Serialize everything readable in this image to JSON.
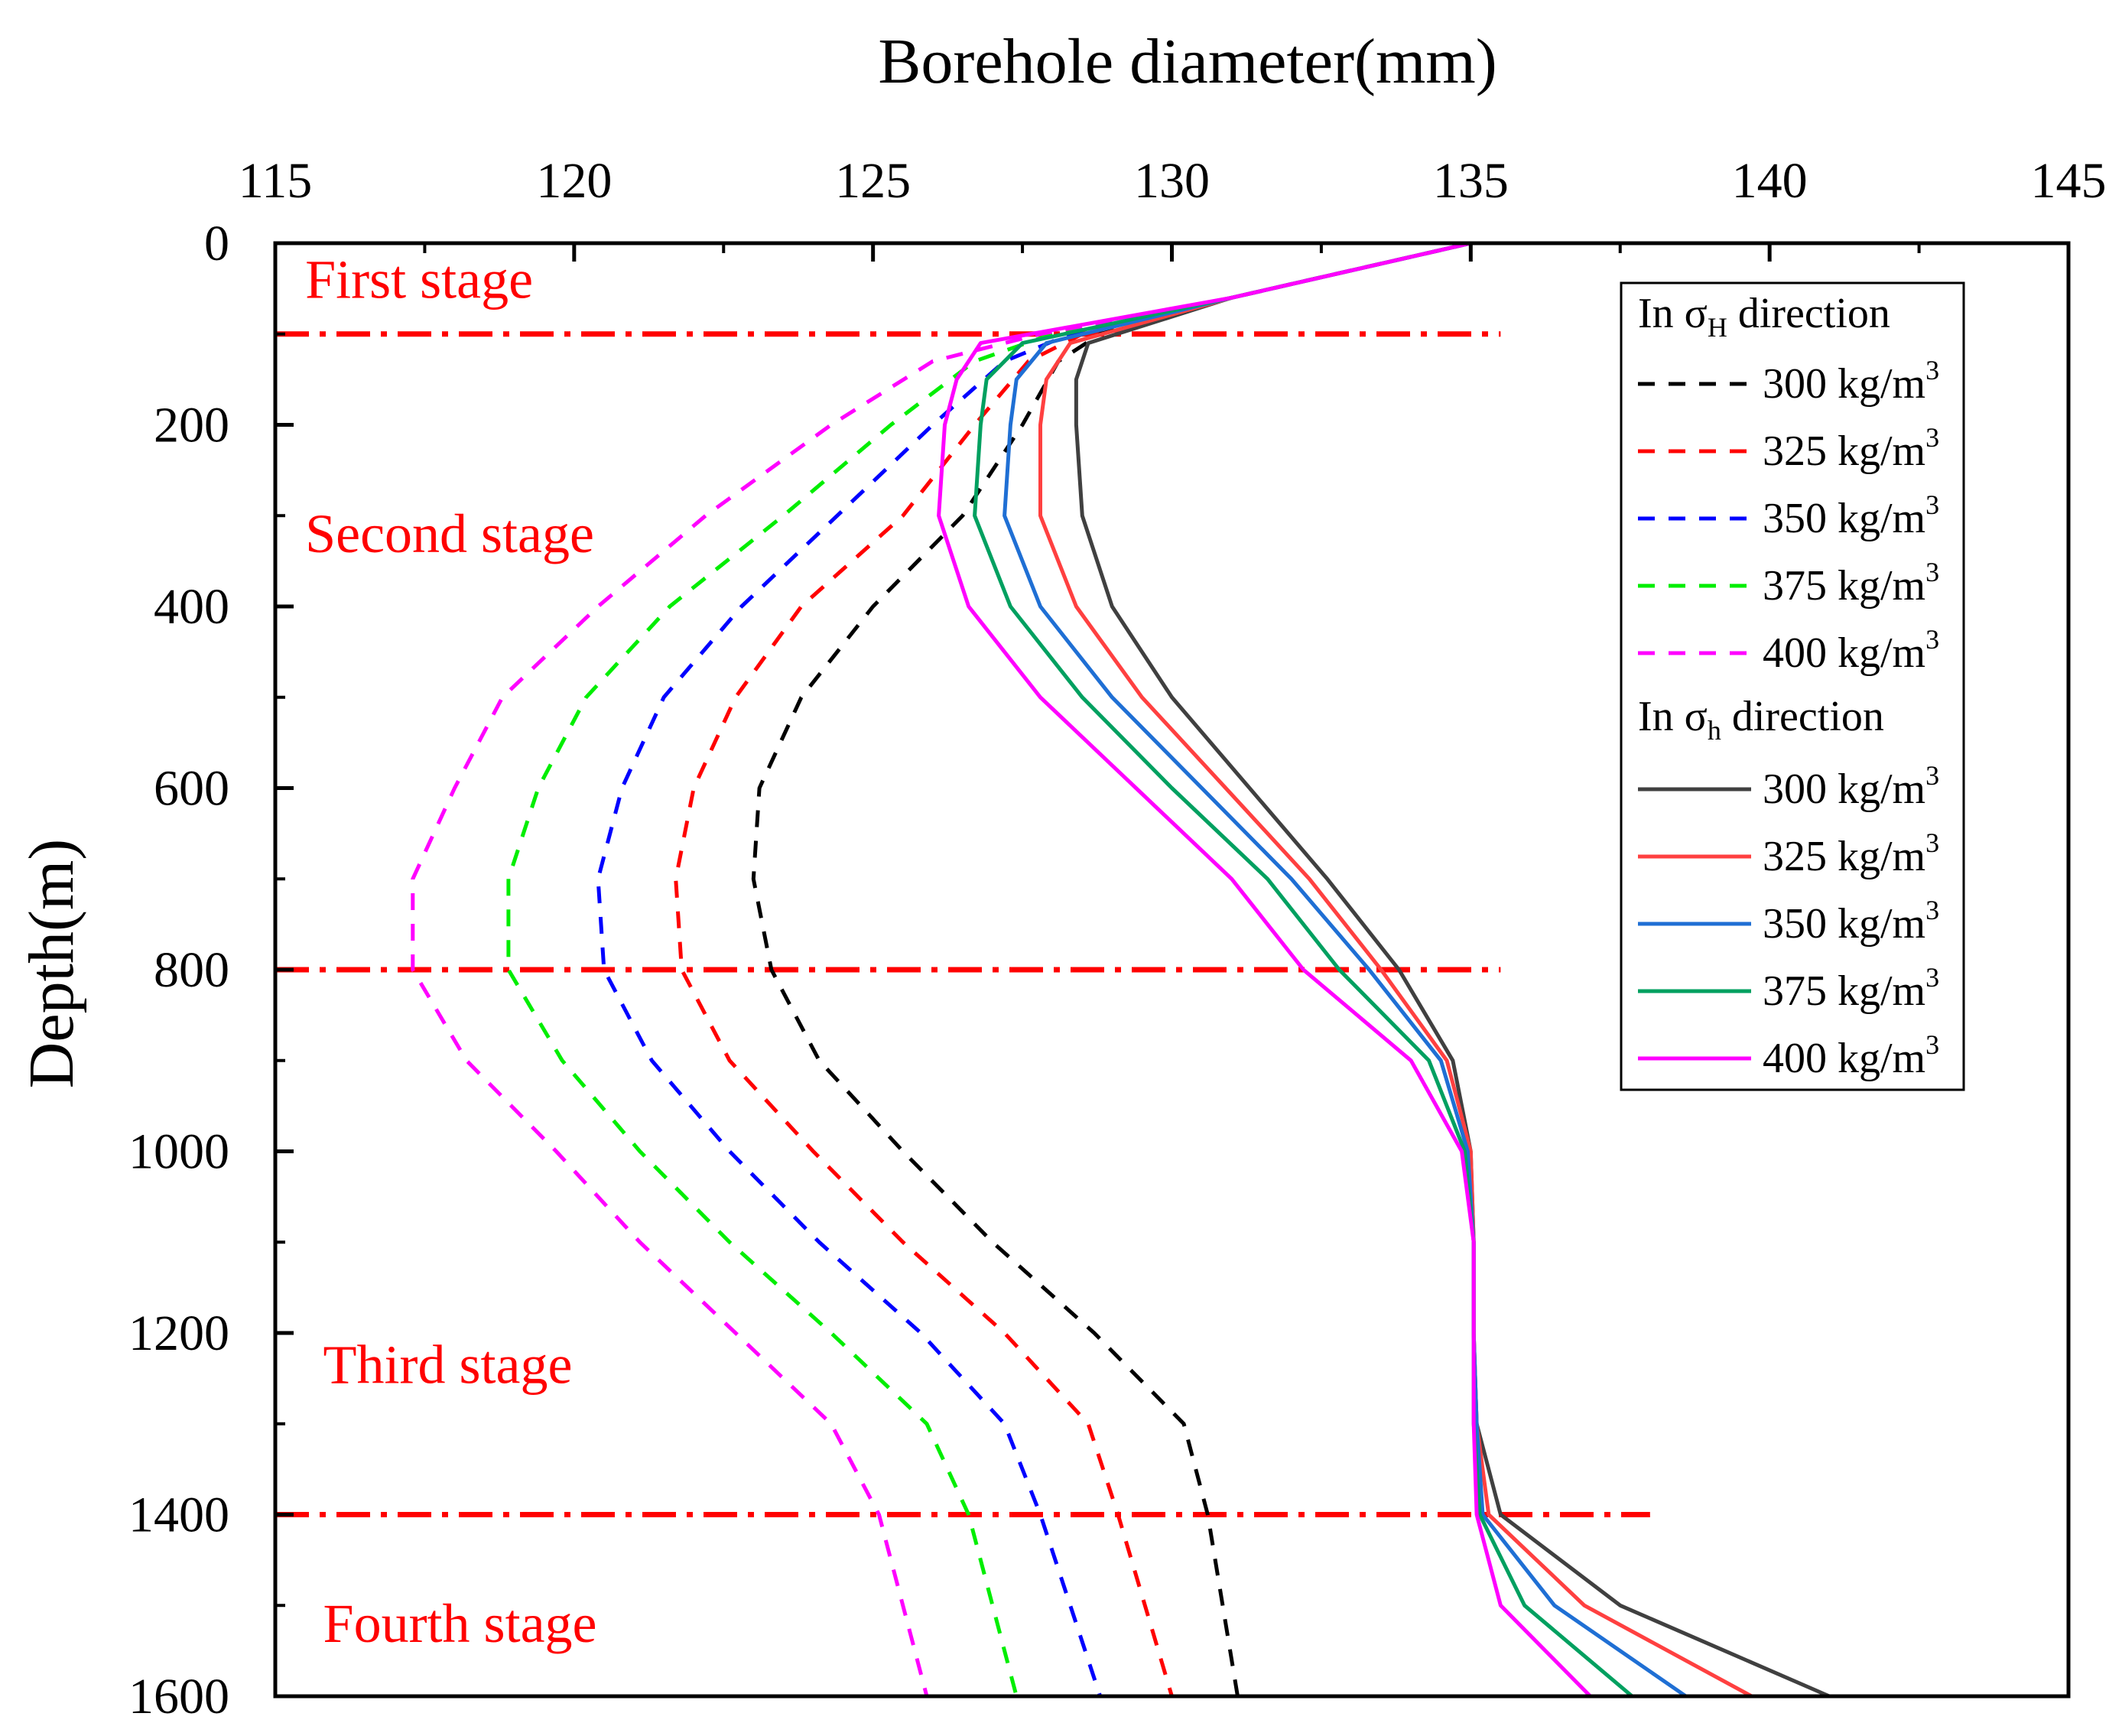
{
  "chart_data": {
    "type": "line",
    "title": "",
    "xlabel": "Borehole diameter(mm)",
    "ylabel": "Depth(m)",
    "xlim": [
      115,
      145
    ],
    "ylim": [
      1600,
      0
    ],
    "xticks": [
      115,
      120,
      125,
      130,
      135,
      140,
      145
    ],
    "yticks": [
      0,
      200,
      400,
      600,
      800,
      1000,
      1200,
      1400,
      1600
    ],
    "x_tick_labels": [
      "115",
      "120",
      "125",
      "130",
      "135",
      "140",
      "145"
    ],
    "y_tick_labels": [
      "0",
      "200",
      "400",
      "600",
      "800",
      "1000",
      "1200",
      "1400",
      "1600"
    ],
    "stage_lines": [
      {
        "depth": 100,
        "x_end": 135.5,
        "color": "#ff0000"
      },
      {
        "depth": 800,
        "x_end": 135.5,
        "color": "#ff0000"
      },
      {
        "depth": 1400,
        "x_end": 138.0,
        "color": "#ff0000"
      }
    ],
    "stage_labels": [
      {
        "text": "First stage",
        "x": 115.5,
        "depth": 60
      },
      {
        "text": "Second stage",
        "x": 115.5,
        "depth": 340
      },
      {
        "text": "Third stage",
        "x": 115.8,
        "depth": 1255
      },
      {
        "text": "Fourth stage",
        "x": 115.8,
        "depth": 1540
      }
    ],
    "legend": {
      "position": "top-right",
      "group_titles": [
        {
          "prefix": "In σ",
          "sub": "H",
          "suffix": " direction"
        },
        {
          "prefix": "In σ",
          "sub": "h",
          "suffix": " direction"
        }
      ],
      "unit_base": " kg/m",
      "unit_sup": "3"
    },
    "series": [
      {
        "name": "300 kg/m3",
        "group": "sigma_H",
        "style": "dashed",
        "color": "#000000",
        "x": [
          135.0,
          131.0,
          128.8,
          128.1,
          127.5,
          126.5,
          125.0,
          123.8,
          123.1,
          123.0,
          123.3,
          124.1,
          125.5,
          127.0,
          128.7,
          130.2,
          130.6,
          131.1
        ],
        "y": [
          0,
          60,
          100,
          130,
          200,
          300,
          400,
          500,
          600,
          700,
          800,
          900,
          1000,
          1100,
          1200,
          1300,
          1400,
          1600
        ]
      },
      {
        "name": "325 kg/m3",
        "group": "sigma_H",
        "style": "dashed",
        "color": "#ff0000",
        "x": [
          135.0,
          131.0,
          128.5,
          127.6,
          126.7,
          125.5,
          123.8,
          122.7,
          122.0,
          121.7,
          121.8,
          122.6,
          124.0,
          125.5,
          127.2,
          128.6,
          129.1,
          130.0
        ],
        "y": [
          0,
          60,
          100,
          130,
          200,
          300,
          400,
          500,
          600,
          700,
          800,
          900,
          1000,
          1100,
          1200,
          1300,
          1400,
          1600
        ]
      },
      {
        "name": "350 kg/m3",
        "group": "sigma_H",
        "style": "dashed",
        "color": "#0000ff",
        "x": [
          135.0,
          131.0,
          128.3,
          127.2,
          126.0,
          124.4,
          122.8,
          121.5,
          120.8,
          120.4,
          120.5,
          121.3,
          122.6,
          124.1,
          125.8,
          127.2,
          127.8,
          128.8
        ],
        "y": [
          0,
          60,
          100,
          130,
          200,
          300,
          400,
          500,
          600,
          700,
          800,
          900,
          1000,
          1100,
          1200,
          1300,
          1400,
          1600
        ]
      },
      {
        "name": "375 kg/m3",
        "group": "sigma_H",
        "style": "dashed",
        "color": "#00ee00",
        "x": [
          135.0,
          131.0,
          128.0,
          126.7,
          125.3,
          123.5,
          121.6,
          120.2,
          119.4,
          118.9,
          118.9,
          119.8,
          121.1,
          122.6,
          124.3,
          125.9,
          126.6,
          127.4
        ],
        "y": [
          0,
          60,
          100,
          130,
          200,
          300,
          400,
          500,
          600,
          700,
          800,
          900,
          1000,
          1100,
          1200,
          1300,
          1400,
          1600
        ]
      },
      {
        "name": "400 kg/m3",
        "group": "sigma_H",
        "style": "dashed",
        "color": "#ff00ff",
        "x": [
          135.0,
          131.0,
          127.8,
          126.0,
          124.3,
          122.2,
          120.4,
          118.8,
          118.0,
          117.3,
          117.3,
          118.2,
          119.7,
          121.1,
          122.7,
          124.3,
          125.1,
          125.9
        ],
        "y": [
          0,
          60,
          100,
          130,
          200,
          300,
          400,
          500,
          600,
          700,
          800,
          900,
          1000,
          1100,
          1200,
          1300,
          1400,
          1600
        ]
      },
      {
        "name": "300 kg/m3",
        "group": "sigma_h",
        "style": "solid",
        "color": "#404040",
        "x": [
          135.0,
          131.0,
          128.6,
          128.4,
          128.4,
          128.5,
          129.0,
          130.0,
          131.3,
          132.6,
          133.8,
          134.7,
          135.0,
          135.05,
          135.05,
          135.1,
          135.5,
          137.5,
          141.0
        ],
        "y": [
          0,
          60,
          110,
          150,
          200,
          300,
          400,
          500,
          600,
          700,
          800,
          900,
          1000,
          1100,
          1200,
          1300,
          1400,
          1500,
          1600
        ]
      },
      {
        "name": "325 kg/m3",
        "group": "sigma_h",
        "style": "solid",
        "color": "#ff4040",
        "x": [
          135.0,
          131.0,
          128.3,
          127.9,
          127.8,
          127.8,
          128.4,
          129.5,
          130.9,
          132.3,
          133.5,
          134.6,
          135.0,
          135.05,
          135.05,
          135.1,
          135.3,
          136.9,
          139.7
        ],
        "y": [
          0,
          60,
          110,
          150,
          200,
          300,
          400,
          500,
          600,
          700,
          800,
          900,
          1000,
          1100,
          1200,
          1300,
          1400,
          1500,
          1600
        ]
      },
      {
        "name": "350 kg/m3",
        "group": "sigma_h",
        "style": "solid",
        "color": "#1f6fd4",
        "x": [
          135.0,
          131.0,
          127.9,
          127.4,
          127.3,
          127.2,
          127.8,
          129.0,
          130.5,
          132.0,
          133.3,
          134.5,
          134.95,
          135.05,
          135.05,
          135.1,
          135.2,
          136.4,
          138.6
        ],
        "y": [
          0,
          60,
          110,
          150,
          200,
          300,
          400,
          500,
          600,
          700,
          800,
          900,
          1000,
          1100,
          1200,
          1300,
          1400,
          1500,
          1600
        ]
      },
      {
        "name": "375 kg/m3",
        "group": "sigma_h",
        "style": "solid",
        "color": "#00a060",
        "x": [
          135.0,
          131.0,
          127.5,
          126.9,
          126.8,
          126.7,
          127.3,
          128.5,
          130.0,
          131.6,
          132.8,
          134.3,
          134.9,
          135.05,
          135.05,
          135.05,
          135.15,
          135.9,
          137.7
        ],
        "y": [
          0,
          60,
          110,
          150,
          200,
          300,
          400,
          500,
          600,
          700,
          800,
          900,
          1000,
          1100,
          1200,
          1300,
          1400,
          1500,
          1600
        ]
      },
      {
        "name": "400 kg/m3",
        "group": "sigma_h",
        "style": "solid",
        "color": "#ff00ff",
        "x": [
          135.0,
          131.0,
          126.8,
          126.4,
          126.2,
          126.1,
          126.6,
          127.8,
          129.4,
          131.0,
          132.2,
          134.0,
          134.85,
          135.05,
          135.05,
          135.05,
          135.1,
          135.5,
          137.0
        ],
        "y": [
          0,
          60,
          110,
          150,
          200,
          300,
          400,
          500,
          600,
          700,
          800,
          900,
          1000,
          1100,
          1200,
          1300,
          1400,
          1500,
          1600
        ]
      }
    ]
  }
}
